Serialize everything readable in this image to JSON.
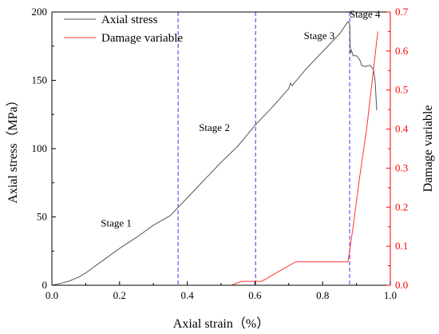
{
  "chart_data": {
    "type": "line",
    "xlabel": "Axial strain（%）",
    "ylabel": "Axial stress（MPa）",
    "y2label": "Damage variable",
    "xlim": [
      0.0,
      1.0
    ],
    "ylim": [
      0,
      200
    ],
    "y2lim": [
      0.0,
      0.7
    ],
    "x_ticks": [
      "0.0",
      "0.2",
      "0.4",
      "0.6",
      "0.8",
      "1.0"
    ],
    "y_ticks": [
      "0",
      "50",
      "100",
      "150",
      "200"
    ],
    "y2_ticks": [
      "0.0",
      "0.1",
      "0.2",
      "0.3",
      "0.4",
      "0.5",
      "0.6",
      "0.7"
    ],
    "grid": false,
    "legend_position": "top-left",
    "colors": {
      "stress": "#555555",
      "damage": "#ff3333",
      "stage_line": "#5a5ae6",
      "y2_axis": "#ff0000"
    },
    "series": [
      {
        "name": "Axial stress",
        "axis": "left",
        "points": [
          [
            0.0,
            0
          ],
          [
            0.02,
            1
          ],
          [
            0.05,
            3
          ],
          [
            0.08,
            6
          ],
          [
            0.1,
            9
          ],
          [
            0.15,
            18
          ],
          [
            0.2,
            27
          ],
          [
            0.25,
            35
          ],
          [
            0.3,
            44
          ],
          [
            0.35,
            51
          ],
          [
            0.4,
            64
          ],
          [
            0.45,
            77
          ],
          [
            0.5,
            90
          ],
          [
            0.55,
            102
          ],
          [
            0.6,
            117
          ],
          [
            0.65,
            130
          ],
          [
            0.7,
            144
          ],
          [
            0.705,
            148
          ],
          [
            0.71,
            146
          ],
          [
            0.75,
            158
          ],
          [
            0.8,
            171
          ],
          [
            0.85,
            184
          ],
          [
            0.875,
            193
          ],
          [
            0.88,
            191
          ],
          [
            0.882,
            170
          ],
          [
            0.885,
            172
          ],
          [
            0.89,
            168
          ],
          [
            0.9,
            168
          ],
          [
            0.91,
            165
          ],
          [
            0.915,
            161
          ],
          [
            0.925,
            160
          ],
          [
            0.94,
            161
          ],
          [
            0.95,
            158
          ],
          [
            0.955,
            150
          ],
          [
            0.96,
            128
          ]
        ]
      },
      {
        "name": "Damage variable",
        "axis": "right",
        "points": [
          [
            0.53,
            0.0
          ],
          [
            0.56,
            0.01
          ],
          [
            0.6,
            0.01
          ],
          [
            0.62,
            0.01
          ],
          [
            0.66,
            0.03
          ],
          [
            0.7,
            0.05
          ],
          [
            0.72,
            0.06
          ],
          [
            0.8,
            0.06
          ],
          [
            0.875,
            0.06
          ],
          [
            0.89,
            0.15
          ],
          [
            0.91,
            0.28
          ],
          [
            0.93,
            0.4
          ],
          [
            0.95,
            0.55
          ],
          [
            0.963,
            0.65
          ]
        ]
      }
    ],
    "stage_lines": [
      0.373,
      0.602,
      0.88
    ],
    "annotations": [
      {
        "text": "Stage 1",
        "x": 0.19,
        "y": 43
      },
      {
        "text": "Stage 2",
        "x": 0.48,
        "y": 113
      },
      {
        "text": "Stage 3",
        "x": 0.79,
        "y": 180
      },
      {
        "text": "Stage 4",
        "x": 0.925,
        "y": 196
      }
    ]
  }
}
